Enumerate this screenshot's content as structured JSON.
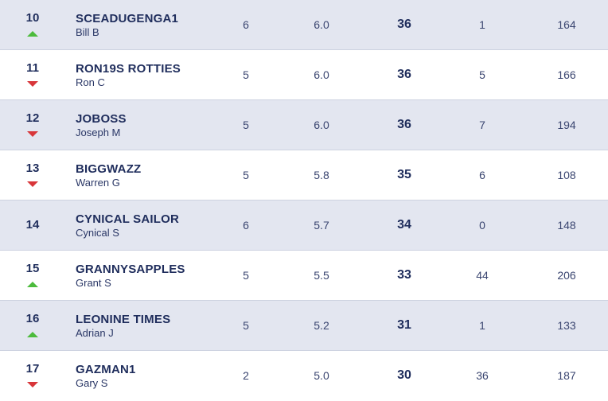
{
  "rows": [
    {
      "rank": "10",
      "move": "up",
      "team": "SCEADUGENGA1",
      "manager": "Bill B",
      "c1": "6",
      "c2": "6.0",
      "points": "36",
      "c4": "1",
      "c5": "164"
    },
    {
      "rank": "11",
      "move": "down",
      "team": "RON19S ROTTIES",
      "manager": "Ron C",
      "c1": "5",
      "c2": "6.0",
      "points": "36",
      "c4": "5",
      "c5": "166"
    },
    {
      "rank": "12",
      "move": "down",
      "team": "JOBOSS",
      "manager": "Joseph M",
      "c1": "5",
      "c2": "6.0",
      "points": "36",
      "c4": "7",
      "c5": "194"
    },
    {
      "rank": "13",
      "move": "down",
      "team": "BIGGWAZZ",
      "manager": "Warren G",
      "c1": "5",
      "c2": "5.8",
      "points": "35",
      "c4": "6",
      "c5": "108"
    },
    {
      "rank": "14",
      "move": "none",
      "team": "CYNICAL SAILOR",
      "manager": "Cynical S",
      "c1": "6",
      "c2": "5.7",
      "points": "34",
      "c4": "0",
      "c5": "148"
    },
    {
      "rank": "15",
      "move": "up",
      "team": "GRANNYSAPPLES",
      "manager": "Grant S",
      "c1": "5",
      "c2": "5.5",
      "points": "33",
      "c4": "44",
      "c5": "206"
    },
    {
      "rank": "16",
      "move": "up",
      "team": "LEONINE TIMES",
      "manager": "Adrian J",
      "c1": "5",
      "c2": "5.2",
      "points": "31",
      "c4": "1",
      "c5": "133"
    },
    {
      "rank": "17",
      "move": "down",
      "team": "GAZMAN1",
      "manager": "Gary S",
      "c1": "2",
      "c2": "5.0",
      "points": "30",
      "c4": "36",
      "c5": "187"
    }
  ],
  "colors": {
    "up": "#4cbb3c",
    "down": "#d8363a",
    "alt_row": "#e3e6f0",
    "text": "#1f2d5c"
  }
}
